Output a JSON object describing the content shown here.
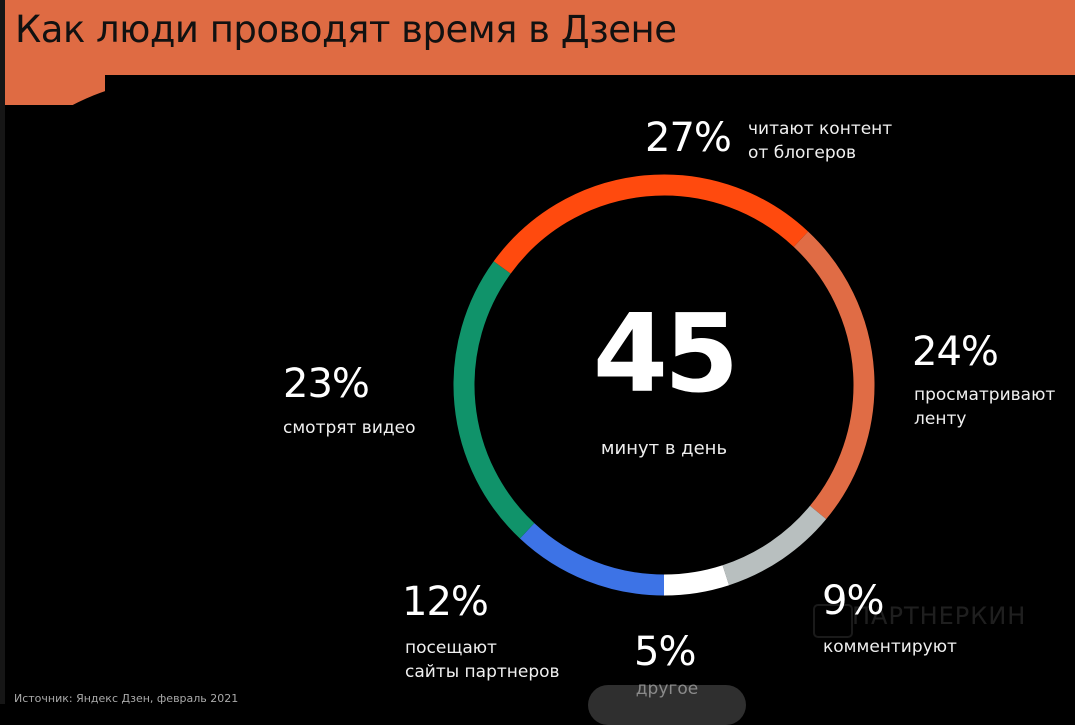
{
  "header": {
    "title": "Как люди проводят время в Дзене"
  },
  "center": {
    "value": "45",
    "label": "минут в день"
  },
  "segments": [
    {
      "pct": "27%",
      "desc_line1": "читают контент",
      "desc_line2": "от блогеров",
      "color": "#ff4a0e"
    },
    {
      "pct": "24%",
      "desc_line1": "просматривают",
      "desc_line2": "ленту",
      "color": "#e06c45"
    },
    {
      "pct": "9%",
      "desc_line1": "комментируют",
      "color": "#b8bfbf"
    },
    {
      "pct": "5%",
      "desc_line1": "другое",
      "color": "#ffffff"
    },
    {
      "pct": "12%",
      "desc_line1": "посещают",
      "desc_line2": "сайты партнеров",
      "color": "#3d73e6"
    },
    {
      "pct": "23%",
      "desc_line1": "смотрят видео",
      "color": "#10936a"
    }
  ],
  "footer": {
    "source": "Источник: Яндекс Дзен, февраль 2021"
  },
  "watermark": {
    "text": "ПАРТНЕРКИН"
  },
  "chart_data": {
    "type": "pie",
    "title": "Как люди проводят время в Дзене",
    "subtitle": "45 минут в день",
    "center_value": 45,
    "center_label": "минут в день",
    "categories": [
      "читают контент от блогеров",
      "просматривают ленту",
      "комментируют",
      "другое",
      "посещают сайты партнеров",
      "смотрят видео"
    ],
    "values": [
      27,
      24,
      9,
      5,
      12,
      23
    ],
    "colors": [
      "#ff4a0e",
      "#e06c45",
      "#b8bfbf",
      "#ffffff",
      "#3d73e6",
      "#10936a"
    ],
    "style": "donut",
    "source": "Источник: Яндекс Дзен, февраль 2021"
  }
}
